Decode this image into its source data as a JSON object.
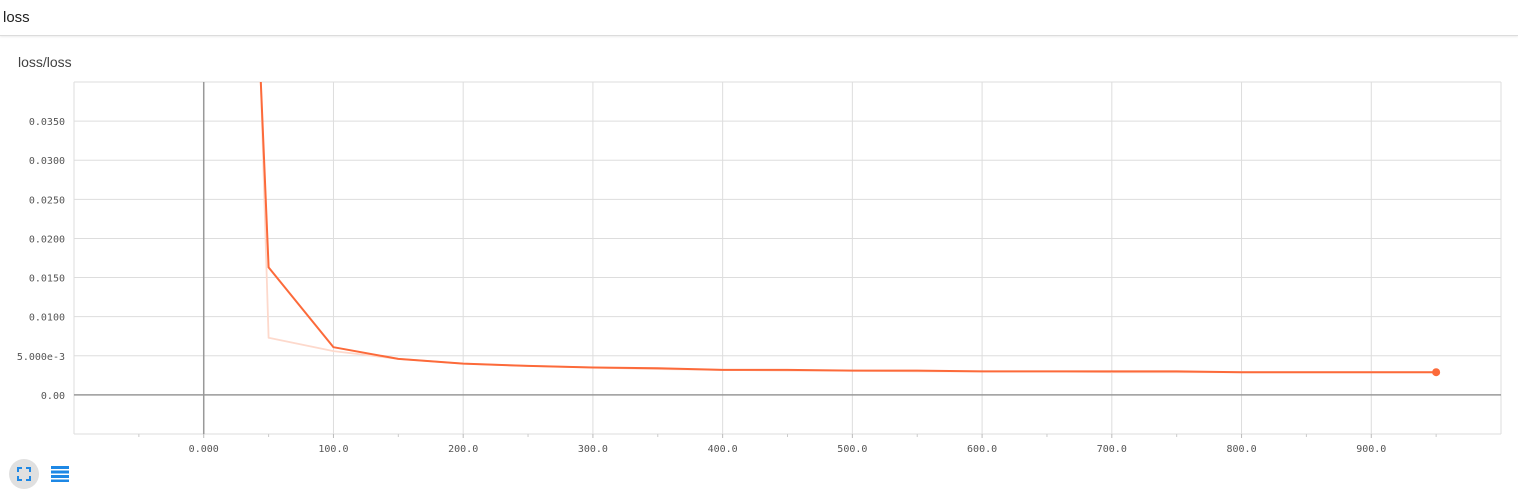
{
  "section": {
    "title": "loss"
  },
  "card": {
    "title": "loss/loss"
  },
  "toolbar": {
    "expand_icon": "fullscreen-icon",
    "data_icon": "list-icon"
  },
  "colors": {
    "smoothed_line": "#fc6a3a",
    "raw_line": "#fdd9cc",
    "grid": "#dddddd",
    "axis": "#999999",
    "icon_accent": "#1e88e5"
  },
  "chart_data": {
    "type": "line",
    "title": "loss/loss",
    "xlabel": "",
    "ylabel": "",
    "xlim": [
      -100,
      1000
    ],
    "ylim": [
      -0.005,
      0.04
    ],
    "x_ticks": [
      0,
      100,
      200,
      300,
      400,
      500,
      600,
      700,
      800,
      900
    ],
    "x_tick_labels": [
      "0.000",
      "100.0",
      "200.0",
      "300.0",
      "400.0",
      "500.0",
      "600.0",
      "700.0",
      "800.0",
      "900.0"
    ],
    "y_ticks": [
      0,
      0.005,
      0.01,
      0.015,
      0.02,
      0.025,
      0.03,
      0.035
    ],
    "y_tick_labels": [
      "0.00",
      "5.000e-3",
      "0.0100",
      "0.0150",
      "0.0200",
      "0.0250",
      "0.0300",
      "0.0350"
    ],
    "grid": true,
    "series": [
      {
        "role": "raw",
        "x": [
          44,
          50,
          100,
          150,
          200,
          250,
          300,
          350,
          400,
          450,
          500,
          550,
          600,
          650,
          700,
          750,
          800,
          850,
          900,
          950
        ],
        "y": [
          0.04,
          0.0073,
          0.0056,
          0.0046,
          0.004,
          0.0037,
          0.0035,
          0.0033,
          0.0032,
          0.0031,
          0.0031,
          0.003,
          0.003,
          0.003,
          0.0029,
          0.0029,
          0.0029,
          0.0029,
          0.0029,
          0.0029
        ]
      },
      {
        "role": "smoothed",
        "x": [
          44,
          50,
          100,
          150,
          200,
          250,
          300,
          350,
          400,
          450,
          500,
          550,
          600,
          650,
          700,
          750,
          800,
          850,
          900,
          950
        ],
        "y": [
          0.04,
          0.0163,
          0.0061,
          0.0046,
          0.004,
          0.0037,
          0.0035,
          0.0034,
          0.0032,
          0.0032,
          0.0031,
          0.0031,
          0.003,
          0.003,
          0.003,
          0.003,
          0.0029,
          0.0029,
          0.0029,
          0.0029
        ]
      }
    ]
  }
}
